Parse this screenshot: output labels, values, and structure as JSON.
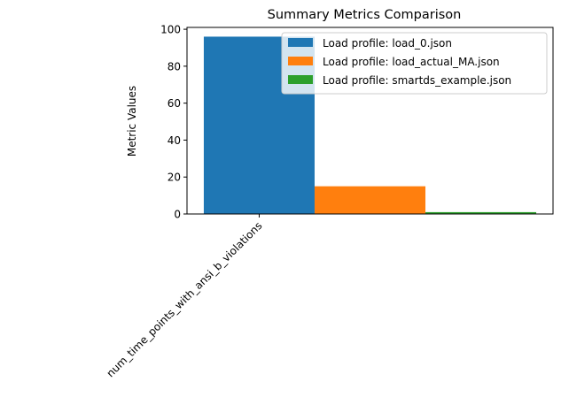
{
  "chart_data": {
    "type": "bar",
    "title": "Summary Metrics Comparison",
    "xlabel": "",
    "ylabel": "Metric Values",
    "categories": [
      "num_time_points_with_ansi_b_violations"
    ],
    "ylim": [
      0,
      101
    ],
    "yticks": [
      0,
      20,
      40,
      60,
      80,
      100
    ],
    "grid": false,
    "legend": "top-right",
    "series": [
      {
        "name": "Load profile: load_0.json",
        "values": [
          96
        ],
        "color": "#1f77b4"
      },
      {
        "name": "Load profile: load_actual_MA.json",
        "values": [
          15
        ],
        "color": "#ff7f0e"
      },
      {
        "name": "Load profile: smartds_example.json",
        "values": [
          1
        ],
        "color": "#2ca02c"
      }
    ]
  }
}
